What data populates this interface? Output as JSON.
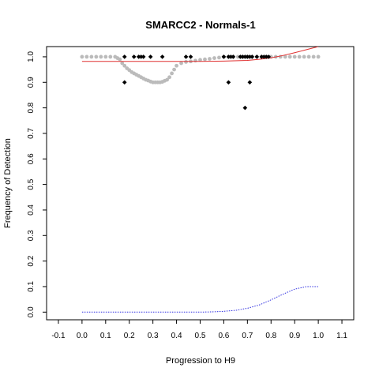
{
  "chart_data": {
    "type": "scatter",
    "title": "SMARCC2 - Normals-1",
    "xlabel": "Progression to H9",
    "ylabel": "Frequency of Detection",
    "xlim": [
      -0.15,
      1.15
    ],
    "ylim": [
      -0.03,
      1.04
    ],
    "x_ticks": [
      "-0.1",
      "0.0",
      "0.1",
      "0.2",
      "0.3",
      "0.4",
      "0.5",
      "0.6",
      "0.7",
      "0.8",
      "0.9",
      "1.0",
      "1.1"
    ],
    "y_ticks": [
      "0.0",
      "0.1",
      "0.2",
      "0.3",
      "0.4",
      "0.5",
      "0.6",
      "0.7",
      "0.8",
      "0.9",
      "1.0"
    ],
    "grid": false,
    "legend": "none",
    "colors": {
      "observed": "#000000",
      "smoothed": "#bbbbbb",
      "fit": "#e03030",
      "lower": "#3030e0"
    },
    "series": [
      {
        "kind": "observed-points",
        "x": [
          0.18,
          0.18,
          0.22,
          0.24,
          0.25,
          0.26,
          0.29,
          0.34,
          0.44,
          0.46,
          0.6,
          0.62,
          0.63,
          0.64,
          0.67,
          0.68,
          0.69,
          0.7,
          0.71,
          0.72,
          0.74,
          0.76,
          0.77,
          0.78,
          0.79,
          0.62,
          0.71,
          0.69
        ],
        "y": [
          1.0,
          0.9,
          1.0,
          1.0,
          1.0,
          1.0,
          1.0,
          1.0,
          1.0,
          1.0,
          1.0,
          1.0,
          1.0,
          1.0,
          1.0,
          1.0,
          1.0,
          1.0,
          1.0,
          1.0,
          1.0,
          1.0,
          1.0,
          1.0,
          1.0,
          0.9,
          0.9,
          0.8
        ]
      },
      {
        "kind": "smoothed-points",
        "x": [
          0.0,
          0.02,
          0.04,
          0.06,
          0.08,
          0.1,
          0.12,
          0.14,
          0.15,
          0.16,
          0.17,
          0.18,
          0.19,
          0.2,
          0.21,
          0.22,
          0.23,
          0.24,
          0.25,
          0.26,
          0.27,
          0.28,
          0.29,
          0.3,
          0.31,
          0.32,
          0.33,
          0.34,
          0.35,
          0.36,
          0.37,
          0.38,
          0.39,
          0.4,
          0.42,
          0.44,
          0.46,
          0.48,
          0.5,
          0.52,
          0.54,
          0.56,
          0.58,
          0.6,
          0.62,
          0.64,
          0.66,
          0.68,
          0.7,
          0.72,
          0.74,
          0.76,
          0.78,
          0.8,
          0.82,
          0.84,
          0.86,
          0.88,
          0.9,
          0.92,
          0.94,
          0.96,
          0.98,
          1.0
        ],
        "y": [
          1.0,
          1.0,
          1.0,
          1.0,
          1.0,
          1.0,
          1.0,
          1.0,
          0.995,
          0.99,
          0.975,
          0.965,
          0.955,
          0.948,
          0.94,
          0.935,
          0.93,
          0.925,
          0.92,
          0.915,
          0.91,
          0.907,
          0.903,
          0.9,
          0.9,
          0.9,
          0.9,
          0.902,
          0.906,
          0.91,
          0.92,
          0.935,
          0.95,
          0.965,
          0.975,
          0.98,
          0.982,
          0.985,
          0.988,
          0.99,
          0.992,
          0.995,
          0.997,
          1.0,
          1.0,
          1.0,
          1.0,
          1.0,
          1.0,
          1.0,
          1.0,
          1.0,
          1.0,
          1.0,
          1.0,
          1.0,
          1.0,
          1.0,
          1.0,
          1.0,
          1.0,
          1.0,
          1.0,
          1.0
        ]
      },
      {
        "kind": "fit-line",
        "x": [
          0.0,
          0.1,
          0.2,
          0.3,
          0.4,
          0.5,
          0.6,
          0.7,
          0.75,
          0.8,
          0.85,
          0.9,
          0.95,
          1.0
        ],
        "y": [
          0.982,
          0.982,
          0.982,
          0.982,
          0.982,
          0.982,
          0.983,
          0.986,
          0.99,
          0.996,
          1.005,
          1.016,
          1.028,
          1.04
        ]
      },
      {
        "kind": "lower-line",
        "x": [
          0.0,
          0.1,
          0.2,
          0.3,
          0.4,
          0.5,
          0.55,
          0.6,
          0.65,
          0.7,
          0.75,
          0.8,
          0.85,
          0.9,
          0.95,
          1.0
        ],
        "y": [
          0.0,
          0.0,
          0.0,
          0.0,
          0.0,
          0.0,
          0.001,
          0.003,
          0.007,
          0.015,
          0.028,
          0.048,
          0.07,
          0.09,
          0.1,
          0.1
        ]
      }
    ]
  }
}
